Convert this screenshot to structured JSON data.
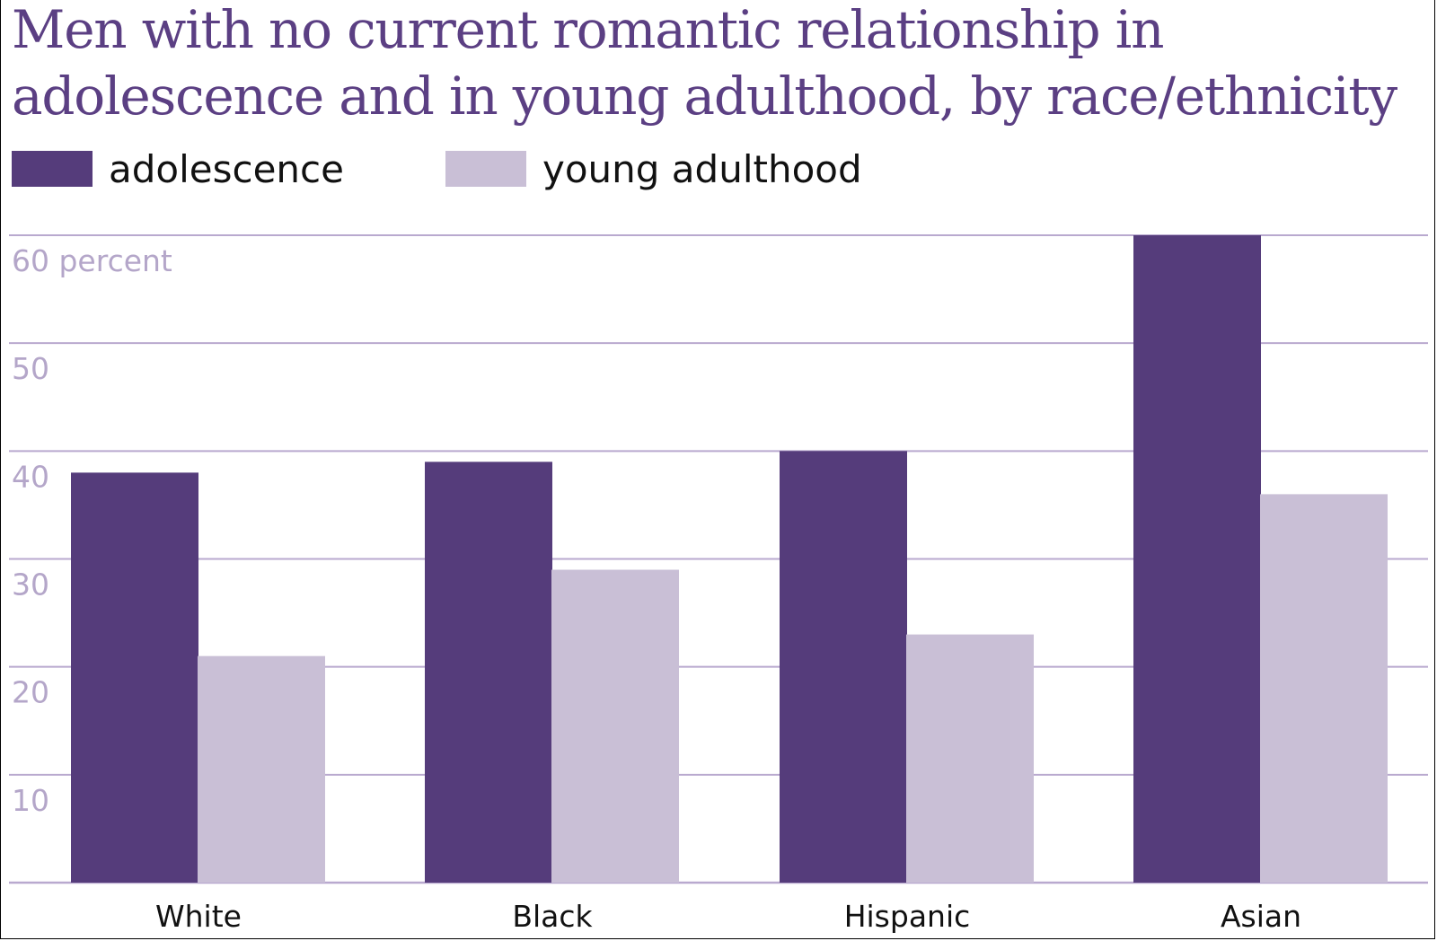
{
  "title_line1": "Men with no current romantic relationship in",
  "title_line2": "adolescence and in young adulthood, by race/ethnicity",
  "colors": {
    "adolescence": "#553c7b",
    "young_adulthood": "#c9bfd6",
    "gridline": "#b9a9cf",
    "tick_label": "#b4a6c9",
    "title": "#5b3f83",
    "category_label": "#111111"
  },
  "chart_data": {
    "type": "bar",
    "title": "Men with no current romantic relationship in adolescence and in young adulthood, by race/ethnicity",
    "categories": [
      "White",
      "Black",
      "Hispanic",
      "Asian"
    ],
    "series": [
      {
        "name": "adolescence",
        "values": [
          38,
          39,
          40,
          60
        ]
      },
      {
        "name": "young adulthood",
        "values": [
          21,
          29,
          23,
          36
        ]
      }
    ],
    "ytick_labels": [
      "60 percent",
      "50",
      "40",
      "30",
      "20",
      "10"
    ],
    "ytick_values": [
      60,
      50,
      40,
      30,
      20,
      10
    ],
    "ylim": [
      0,
      60
    ],
    "grid": true,
    "legend": "top-left",
    "xlabel": "",
    "ylabel": ""
  }
}
